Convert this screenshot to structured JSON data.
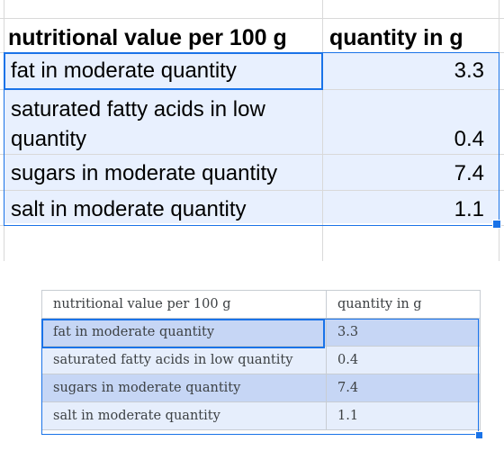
{
  "sheet": {
    "header": {
      "col1": "nutritional value per 100 g",
      "col2": "quantity in g"
    },
    "rows": [
      {
        "label": "fat in moderate quantity",
        "value": "3.3"
      },
      {
        "label": "saturated fatty acids in low",
        "label_line2": "quantity",
        "value": "0.4"
      },
      {
        "label": "sugars in moderate quantity",
        "value": "7.4"
      },
      {
        "label": "salt in moderate quantity",
        "value": "1.1"
      }
    ]
  },
  "pasted_table": {
    "header": {
      "col1": "nutritional value per 100 g",
      "col2": "quantity in g"
    },
    "rows": [
      {
        "label": "fat in moderate quantity",
        "value": "3.3"
      },
      {
        "label": "saturated fatty acids in low quantity",
        "value": "0.4"
      },
      {
        "label": "sugars in moderate quantity",
        "value": "7.4"
      },
      {
        "label": "salt in moderate quantity",
        "value": "1.1"
      }
    ]
  },
  "colors": {
    "selection_border": "#1a73e8",
    "selection_fill": "#e8f0fe",
    "grid": "#d9d9d9"
  }
}
